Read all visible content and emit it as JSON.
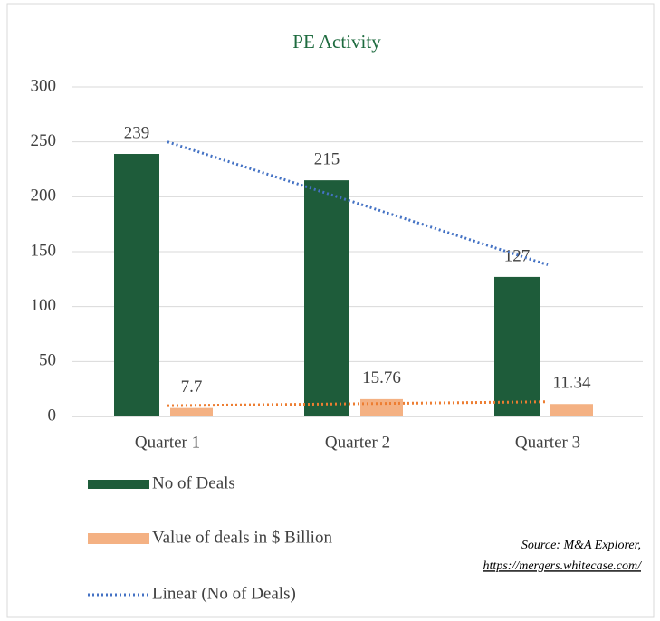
{
  "chart_data": {
    "type": "bar",
    "title": "PE Activity",
    "categories": [
      "Quarter 1",
      "Quarter 2",
      "Quarter 3"
    ],
    "series": [
      {
        "name": "No of Deals",
        "color": "#1e5c3a",
        "values": [
          239,
          215,
          127
        ]
      },
      {
        "name": "Value of deals in $ Billion",
        "color": "#f4b183",
        "values": [
          7.7,
          15.76,
          11.34
        ]
      }
    ],
    "trendlines": [
      {
        "name": "Linear (No of Deals)",
        "color": "#4472c4",
        "values": [
          250,
          194,
          138
        ]
      },
      {
        "color": "#ed7d31",
        "values": [
          9.8,
          11.6,
          13.4
        ]
      }
    ],
    "ylim": [
      0,
      300
    ],
    "yticks": [
      0,
      50,
      100,
      150,
      200,
      250,
      300
    ],
    "grid": true,
    "source": [
      "Source: M&A Explorer,",
      "https://mergers.whitecase.com/"
    ]
  }
}
